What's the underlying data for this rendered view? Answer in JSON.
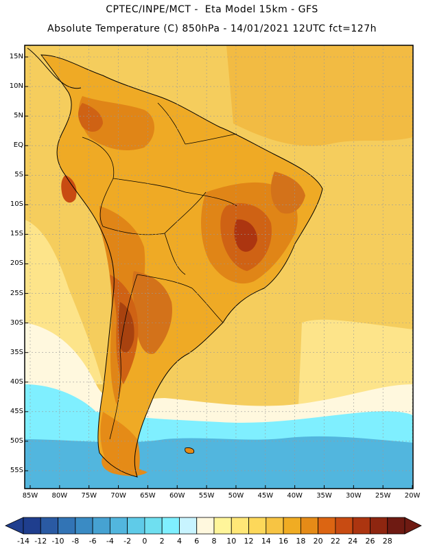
{
  "header": {
    "line1": "CPTEC/INPE/MCT -  Eta Model 15km - GFS",
    "line2": "Absolute Temperature (C) 850hPa - 14/01/2021 12UTC fct=127h"
  },
  "axes": {
    "lat_labels": [
      "15N",
      "10N",
      "5N",
      "EQ",
      "5S",
      "10S",
      "15S",
      "20S",
      "25S",
      "30S",
      "35S",
      "40S",
      "45S",
      "50S",
      "55S"
    ],
    "lon_labels": [
      "85W",
      "80W",
      "75W",
      "70W",
      "65W",
      "60W",
      "55W",
      "50W",
      "45W",
      "40W",
      "35W",
      "30W",
      "25W",
      "20W"
    ]
  },
  "colorbar": {
    "labels": [
      "-14",
      "-12",
      "-10",
      "-8",
      "-6",
      "-4",
      "-2",
      "0",
      "2",
      "4",
      "6",
      "8",
      "10",
      "12",
      "14",
      "16",
      "18",
      "20",
      "22",
      "24",
      "26",
      "28"
    ],
    "colors": [
      "#1f3e8e",
      "#2a5aa3",
      "#3274b5",
      "#3a8bc4",
      "#46a2d2",
      "#52b6de",
      "#5fcbe8",
      "#6fdff0",
      "#7fefff",
      "#c8f4ff",
      "#fff8de",
      "#fff59a",
      "#ffe777",
      "#fdd85a",
      "#f7c443",
      "#f0ac23",
      "#e58b17",
      "#dc6512",
      "#c84b12",
      "#ac3510",
      "#8e2610",
      "#6e1a12"
    ]
  },
  "field_colors": {
    "ocean_warm": "#f5cd5d",
    "ocean_mid": "#fde48a",
    "ocean_pale": "#fff8de",
    "ocean_cyan": "#7fefff",
    "ocean_cold": "#52b6de",
    "land_warm": "#efaa25",
    "land_hot": "#e08517",
    "land_hotter": "#cf6214",
    "land_hottest": "#a8420f",
    "grid": "#999999"
  }
}
